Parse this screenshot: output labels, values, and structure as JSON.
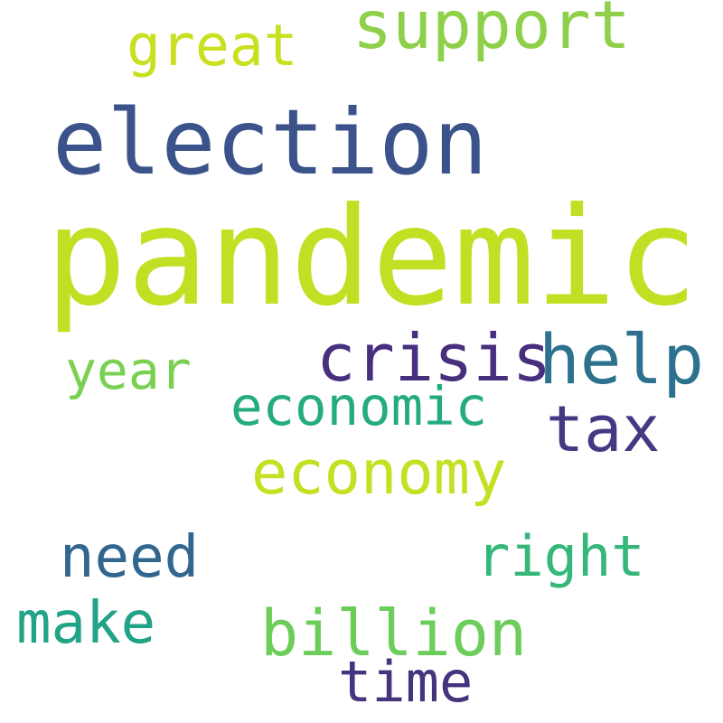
{
  "words": {
    "pandemic": {
      "text": "pandemic",
      "color": "#c2df23"
    },
    "election": {
      "text": "election",
      "color": "#3b528b"
    },
    "support": {
      "text": "support",
      "color": "#8ed04a"
    },
    "great": {
      "text": "great",
      "color": "#c8e020"
    },
    "crisis": {
      "text": "crisis",
      "color": "#472f7d"
    },
    "help": {
      "text": "help",
      "color": "#2c728e"
    },
    "year": {
      "text": "year",
      "color": "#7ad151"
    },
    "economic": {
      "text": "economic",
      "color": "#25ab82"
    },
    "tax": {
      "text": "tax",
      "color": "#443983"
    },
    "economy": {
      "text": "economy",
      "color": "#c5df22"
    },
    "need": {
      "text": "need",
      "color": "#31668e"
    },
    "right": {
      "text": "right",
      "color": "#35b779"
    },
    "make": {
      "text": "make",
      "color": "#20a386"
    },
    "billion": {
      "text": "billion",
      "color": "#6ccd5a"
    },
    "time": {
      "text": "time",
      "color": "#46337e"
    }
  }
}
